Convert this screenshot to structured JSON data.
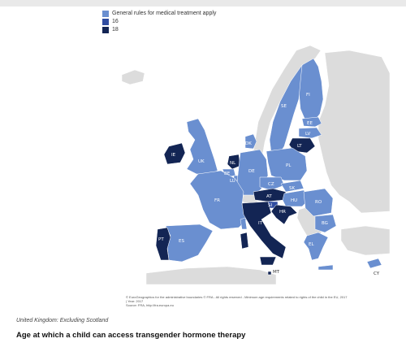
{
  "legend": {
    "items": [
      {
        "label": "General rules for medical treatment apply",
        "color": "#6a8fd0"
      },
      {
        "label": "16",
        "color": "#2f4ca0"
      },
      {
        "label": "18",
        "color": "#132554"
      }
    ]
  },
  "map": {
    "colors": {
      "general": "#6a8fd0",
      "age16": "#2f4ca0",
      "age18": "#132554",
      "nonEU": "#dcdcdc",
      "sea": "#ffffff"
    },
    "countries": [
      {
        "code": "FI",
        "category": "general"
      },
      {
        "code": "SE",
        "category": "general"
      },
      {
        "code": "EE",
        "category": "general"
      },
      {
        "code": "LV",
        "category": "general"
      },
      {
        "code": "LT",
        "category": "age18"
      },
      {
        "code": "DK",
        "category": "general"
      },
      {
        "code": "IE",
        "category": "age18"
      },
      {
        "code": "UK",
        "category": "general"
      },
      {
        "code": "NL",
        "category": "age18"
      },
      {
        "code": "BE",
        "category": "general"
      },
      {
        "code": "LU",
        "category": "general"
      },
      {
        "code": "DE",
        "category": "general"
      },
      {
        "code": "PL",
        "category": "general"
      },
      {
        "code": "CZ",
        "category": "general"
      },
      {
        "code": "SK",
        "category": "general"
      },
      {
        "code": "AT",
        "category": "age18"
      },
      {
        "code": "HU",
        "category": "general"
      },
      {
        "code": "SI",
        "category": "age16"
      },
      {
        "code": "HR",
        "category": "age18"
      },
      {
        "code": "RO",
        "category": "general"
      },
      {
        "code": "BG",
        "category": "general"
      },
      {
        "code": "FR",
        "category": "general"
      },
      {
        "code": "ES",
        "category": "general"
      },
      {
        "code": "PT",
        "category": "age18"
      },
      {
        "code": "IT",
        "category": "age18"
      },
      {
        "code": "EL",
        "category": "general"
      },
      {
        "code": "MT",
        "category": "age18"
      },
      {
        "code": "CY",
        "category": "general"
      }
    ]
  },
  "credits": {
    "line1": "© EuroGeographics for the administrative boundaries © FRA - All rights reserved - Minimum age requirements related to rights of the child in the EU, 2017",
    "line2": "| Year: 2017",
    "line3": "Source: FRA, http://fra.europa.eu"
  },
  "caption": "United Kingdom: Excluding Scotland",
  "title": "Age at which a child can access transgender hormone therapy"
}
